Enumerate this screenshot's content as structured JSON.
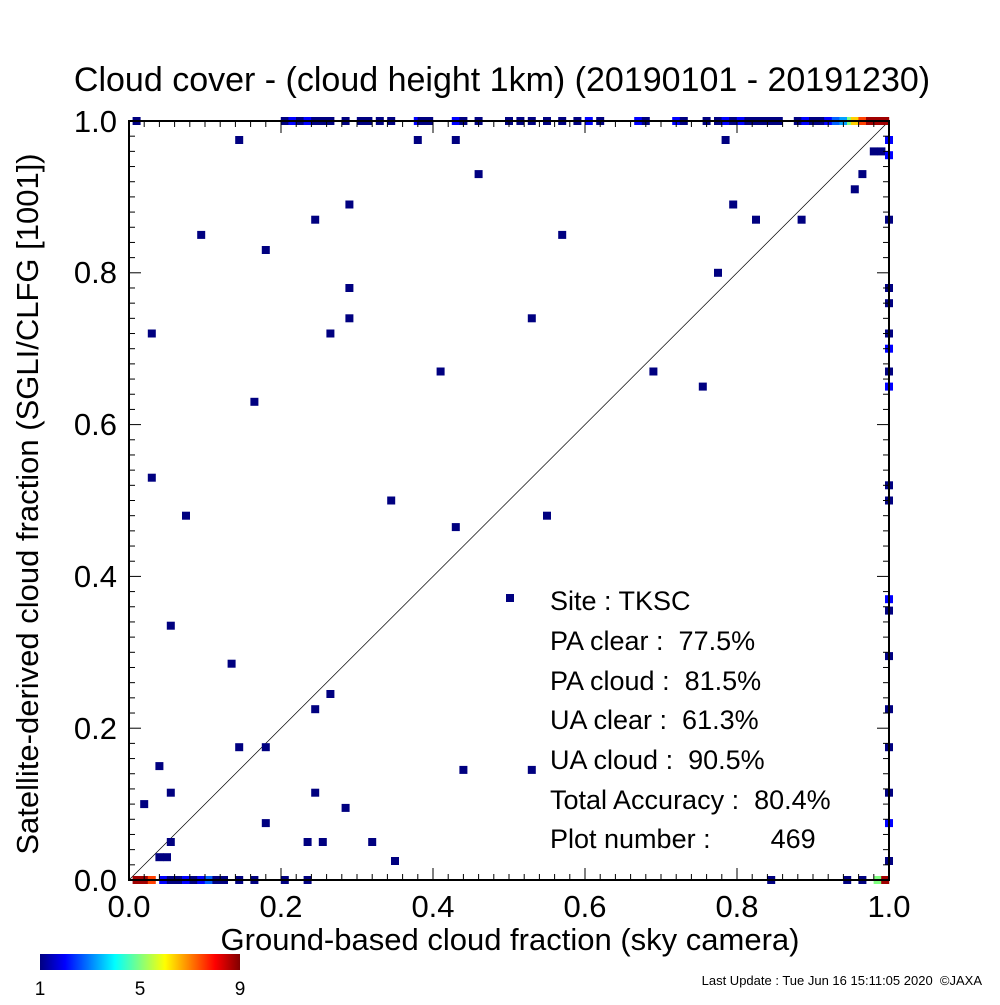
{
  "chart_data": {
    "type": "scatter",
    "title": "Cloud cover - (cloud height 1km)  (20190101 - 20191230)",
    "xlabel": "Ground-based cloud fraction (sky camera)",
    "ylabel": "Satellite-derived cloud fraction (SGLI/CLFG [1001])",
    "xlim": [
      0.0,
      1.0
    ],
    "ylim": [
      0.0,
      1.0
    ],
    "x_ticks": [
      "0.0",
      "0.2",
      "0.4",
      "0.6",
      "0.8",
      "1.0"
    ],
    "y_ticks": [
      "0.0",
      "0.2",
      "0.4",
      "0.6",
      "0.8",
      "1.0"
    ],
    "reference_line": "1:1 diagonal",
    "grid": false,
    "legend_position": "bottom-right",
    "legend": {
      "marker_color": "#000080",
      "rows": [
        "Site : TKSC",
        "PA clear :  77.5%",
        "PA cloud :  81.5%",
        "UA clear :  61.3%",
        "UA cloud :  90.5%",
        "Total Accuracy :  80.4%",
        "Plot number :        469"
      ]
    },
    "colorbar": {
      "min": 1,
      "max": 9,
      "tick_labels": [
        "1",
        "5",
        "9"
      ],
      "stops": [
        "#000080",
        "#0000ff",
        "#0080ff",
        "#00ffff",
        "#80ff80",
        "#ffff00",
        "#ff8000",
        "#ff0000",
        "#800000"
      ]
    },
    "color_scale": {
      "1": "#000080",
      "2": "#0000ff",
      "3": "#0060ff",
      "4": "#00a0ff",
      "5": "#00e0ff",
      "6": "#80ff80",
      "7": "#ffd000",
      "8": "#ff4000",
      "9": "#a00000"
    },
    "points": [
      [
        0.02,
        0.1,
        1
      ],
      [
        0.03,
        0.72,
        1
      ],
      [
        0.03,
        0.53,
        1
      ],
      [
        0.04,
        0.15,
        1
      ],
      [
        0.04,
        0.03,
        1
      ],
      [
        0.05,
        0.03,
        1
      ],
      [
        0.055,
        0.115,
        1
      ],
      [
        0.055,
        0.05,
        1
      ],
      [
        0.055,
        0.335,
        1
      ],
      [
        0.075,
        0.48,
        1
      ],
      [
        0.095,
        0.85,
        1
      ],
      [
        0.135,
        0.285,
        1
      ],
      [
        0.145,
        0.975,
        1
      ],
      [
        0.145,
        0.175,
        1
      ],
      [
        0.165,
        0.63,
        1
      ],
      [
        0.18,
        0.83,
        1
      ],
      [
        0.18,
        0.175,
        1
      ],
      [
        0.18,
        0.075,
        1
      ],
      [
        0.235,
        0.05,
        1
      ],
      [
        0.245,
        0.87,
        1
      ],
      [
        0.245,
        0.225,
        1
      ],
      [
        0.245,
        0.115,
        1
      ],
      [
        0.255,
        0.05,
        1
      ],
      [
        0.265,
        0.72,
        1
      ],
      [
        0.265,
        0.245,
        1
      ],
      [
        0.285,
        0.095,
        1
      ],
      [
        0.29,
        0.89,
        1
      ],
      [
        0.29,
        0.78,
        1
      ],
      [
        0.29,
        0.74,
        1
      ],
      [
        0.32,
        0.05,
        1
      ],
      [
        0.345,
        0.5,
        1
      ],
      [
        0.35,
        0.025,
        1
      ],
      [
        0.38,
        0.975,
        1
      ],
      [
        0.41,
        0.67,
        1
      ],
      [
        0.43,
        0.975,
        1
      ],
      [
        0.43,
        0.465,
        1
      ],
      [
        0.44,
        0.145,
        1
      ],
      [
        0.46,
        0.93,
        1
      ],
      [
        0.53,
        0.74,
        1
      ],
      [
        0.53,
        0.145,
        1
      ],
      [
        0.55,
        0.48,
        1
      ],
      [
        0.57,
        0.85,
        1
      ],
      [
        0.69,
        0.67,
        1
      ],
      [
        0.755,
        0.65,
        1
      ],
      [
        0.775,
        0.8,
        1
      ],
      [
        0.785,
        0.975,
        1
      ],
      [
        0.795,
        0.89,
        1
      ],
      [
        0.825,
        0.87,
        1
      ],
      [
        0.885,
        0.87,
        1
      ],
      [
        0.955,
        0.91,
        1
      ],
      [
        0.965,
        0.93,
        1
      ],
      [
        0.98,
        0.96,
        1
      ],
      [
        0.99,
        0.96,
        1
      ],
      [
        0.01,
        1.0,
        1
      ],
      [
        0.205,
        1.0,
        1
      ],
      [
        0.215,
        1.0,
        2
      ],
      [
        0.225,
        1.0,
        1
      ],
      [
        0.235,
        1.0,
        2
      ],
      [
        0.245,
        1.0,
        1
      ],
      [
        0.255,
        1.0,
        1
      ],
      [
        0.265,
        1.0,
        1
      ],
      [
        0.285,
        1.0,
        1
      ],
      [
        0.305,
        1.0,
        1
      ],
      [
        0.315,
        1.0,
        1
      ],
      [
        0.33,
        1.0,
        1
      ],
      [
        0.345,
        1.0,
        1
      ],
      [
        0.38,
        1.0,
        2
      ],
      [
        0.385,
        1.0,
        1
      ],
      [
        0.395,
        1.0,
        1
      ],
      [
        0.43,
        1.0,
        2
      ],
      [
        0.44,
        1.0,
        1
      ],
      [
        0.46,
        1.0,
        1
      ],
      [
        0.5,
        1.0,
        1
      ],
      [
        0.515,
        1.0,
        1
      ],
      [
        0.53,
        1.0,
        1
      ],
      [
        0.55,
        1.0,
        1
      ],
      [
        0.57,
        1.0,
        1
      ],
      [
        0.59,
        1.0,
        1
      ],
      [
        0.605,
        1.0,
        2
      ],
      [
        0.62,
        1.0,
        1
      ],
      [
        0.67,
        1.0,
        2
      ],
      [
        0.68,
        1.0,
        1
      ],
      [
        0.72,
        1.0,
        2
      ],
      [
        0.73,
        1.0,
        1
      ],
      [
        0.76,
        1.0,
        1
      ],
      [
        0.775,
        1.0,
        1
      ],
      [
        0.785,
        1.0,
        2
      ],
      [
        0.795,
        1.0,
        1
      ],
      [
        0.805,
        1.0,
        2
      ],
      [
        0.815,
        1.0,
        1
      ],
      [
        0.825,
        1.0,
        1
      ],
      [
        0.835,
        1.0,
        1
      ],
      [
        0.845,
        1.0,
        1
      ],
      [
        0.855,
        1.0,
        1
      ],
      [
        0.88,
        1.0,
        1
      ],
      [
        0.89,
        1.0,
        2
      ],
      [
        0.9,
        1.0,
        1
      ],
      [
        0.91,
        1.0,
        1
      ],
      [
        0.92,
        1.0,
        2
      ],
      [
        0.93,
        1.0,
        3
      ],
      [
        0.94,
        1.0,
        4
      ],
      [
        0.95,
        1.0,
        6
      ],
      [
        0.955,
        1.0,
        7
      ],
      [
        0.965,
        1.0,
        8
      ],
      [
        0.975,
        1.0,
        9
      ],
      [
        0.985,
        1.0,
        9
      ],
      [
        0.995,
        1.0,
        9
      ],
      [
        0.01,
        0.0,
        9
      ],
      [
        0.02,
        0.0,
        9
      ],
      [
        0.03,
        0.0,
        8
      ],
      [
        0.045,
        0.0,
        2
      ],
      [
        0.055,
        0.0,
        1
      ],
      [
        0.065,
        0.0,
        1
      ],
      [
        0.075,
        0.0,
        2
      ],
      [
        0.085,
        0.0,
        1
      ],
      [
        0.095,
        0.0,
        2
      ],
      [
        0.105,
        0.0,
        3
      ],
      [
        0.115,
        0.0,
        1
      ],
      [
        0.125,
        0.0,
        1
      ],
      [
        0.145,
        0.0,
        1
      ],
      [
        0.165,
        0.0,
        1
      ],
      [
        0.205,
        0.0,
        1
      ],
      [
        0.235,
        0.0,
        1
      ],
      [
        0.845,
        0.0,
        1
      ],
      [
        0.945,
        0.0,
        1
      ],
      [
        0.965,
        0.0,
        1
      ],
      [
        0.985,
        0.0,
        6
      ],
      [
        0.995,
        0.0,
        9
      ],
      [
        1.0,
        0.975,
        2
      ],
      [
        1.0,
        0.955,
        2
      ],
      [
        1.0,
        0.87,
        1
      ],
      [
        1.0,
        0.78,
        1
      ],
      [
        1.0,
        0.76,
        1
      ],
      [
        1.0,
        0.72,
        1
      ],
      [
        1.0,
        0.7,
        2
      ],
      [
        1.0,
        0.67,
        1
      ],
      [
        1.0,
        0.65,
        2
      ],
      [
        1.0,
        0.52,
        1
      ],
      [
        1.0,
        0.5,
        1
      ],
      [
        1.0,
        0.37,
        2
      ],
      [
        1.0,
        0.355,
        1
      ],
      [
        1.0,
        0.295,
        1
      ],
      [
        1.0,
        0.225,
        1
      ],
      [
        1.0,
        0.175,
        1
      ],
      [
        1.0,
        0.115,
        1
      ],
      [
        1.0,
        0.075,
        2
      ],
      [
        1.0,
        0.025,
        1
      ]
    ]
  },
  "footer": {
    "last_update": "Last Update : Tue Jun 16 15:11:05 2020  ©JAXA"
  }
}
